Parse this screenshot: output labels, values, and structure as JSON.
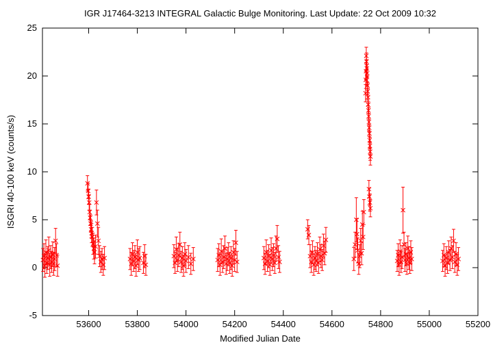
{
  "chart_data": {
    "type": "scatter",
    "title": "IGR J17464-3213   INTEGRAL Galactic Bulge Monitoring.  Last Update: 22 Oct 2009 10:32",
    "xlabel": "Modified Julian Date",
    "ylabel": "ISGRI 40-100 keV (counts/s)",
    "xlim": [
      53410,
      55200
    ],
    "ylim": [
      -5,
      25
    ],
    "xticks": [
      53600,
      53800,
      54000,
      54200,
      54400,
      54600,
      54800,
      55000,
      55200
    ],
    "yticks": [
      -5,
      0,
      5,
      10,
      15,
      20,
      25
    ],
    "grid": false,
    "legend": "none",
    "marker": "x with error bars",
    "color": "#ff0000",
    "series": [
      {
        "points": [
          [
            53412,
            0.8,
            1.2
          ],
          [
            53416,
            1.2,
            1.3
          ],
          [
            53420,
            0.2,
            1.2
          ],
          [
            53424,
            1.6,
            1.3
          ],
          [
            53428,
            0.5,
            1.1
          ],
          [
            53432,
            1.0,
            1.2
          ],
          [
            53436,
            1.8,
            1.4
          ],
          [
            53440,
            0.3,
            1.2
          ],
          [
            53444,
            1.1,
            1.2
          ],
          [
            53448,
            0.6,
            1.1
          ],
          [
            53452,
            1.4,
            1.3
          ],
          [
            53456,
            0.4,
            1.2
          ],
          [
            53460,
            0.9,
            1.2
          ],
          [
            53464,
            2.8,
            1.3
          ],
          [
            53468,
            1.3,
            1.2
          ],
          [
            53472,
            0.2,
            1.1
          ],
          [
            53595,
            8.8,
            0.8
          ],
          [
            53598,
            8.0,
            0.8
          ],
          [
            53600,
            7.4,
            0.8
          ],
          [
            53602,
            6.8,
            0.8
          ],
          [
            53604,
            5.8,
            0.8
          ],
          [
            53606,
            5.2,
            0.8
          ],
          [
            53608,
            4.6,
            0.9
          ],
          [
            53610,
            4.0,
            0.9
          ],
          [
            53612,
            3.6,
            1.0
          ],
          [
            53615,
            3.2,
            1.0
          ],
          [
            53618,
            2.5,
            1.1
          ],
          [
            53621,
            2.0,
            1.1
          ],
          [
            53624,
            1.6,
            1.2
          ],
          [
            53628,
            2.2,
            1.2
          ],
          [
            53632,
            6.8,
            1.3
          ],
          [
            53636,
            4.6,
            1.4
          ],
          [
            53640,
            2.8,
            1.4
          ],
          [
            53645,
            1.2,
            1.1
          ],
          [
            53650,
            0.6,
            1.1
          ],
          [
            53655,
            0.9,
            1.1
          ],
          [
            53660,
            0.3,
            1.1
          ],
          [
            53665,
            1.0,
            1.2
          ],
          [
            53770,
            0.9,
            1.1
          ],
          [
            53775,
            0.4,
            1.2
          ],
          [
            53780,
            1.4,
            1.2
          ],
          [
            53785,
            0.7,
            1.1
          ],
          [
            53790,
            1.1,
            1.2
          ],
          [
            53795,
            0.2,
            1.1
          ],
          [
            53800,
            1.6,
            1.3
          ],
          [
            53805,
            0.8,
            1.2
          ],
          [
            53810,
            1.0,
            1.2
          ],
          [
            53825,
            0.5,
            1.1
          ],
          [
            53830,
            1.2,
            1.2
          ],
          [
            53835,
            0.3,
            1.1
          ],
          [
            53950,
            1.2,
            1.2
          ],
          [
            53955,
            0.5,
            1.1
          ],
          [
            53960,
            1.9,
            1.3
          ],
          [
            53965,
            0.8,
            1.2
          ],
          [
            53970,
            1.3,
            1.2
          ],
          [
            53975,
            2.4,
            1.3
          ],
          [
            53980,
            0.6,
            1.1
          ],
          [
            53985,
            1.0,
            1.2
          ],
          [
            53990,
            0.2,
            1.1
          ],
          [
            53995,
            1.4,
            1.2
          ],
          [
            54000,
            0.7,
            1.2
          ],
          [
            54010,
            1.1,
            1.2
          ],
          [
            54020,
            0.4,
            1.1
          ],
          [
            54030,
            0.9,
            1.2
          ],
          [
            54130,
            0.8,
            1.2
          ],
          [
            54135,
            1.3,
            1.2
          ],
          [
            54140,
            0.3,
            1.1
          ],
          [
            54145,
            1.7,
            1.3
          ],
          [
            54150,
            0.6,
            1.1
          ],
          [
            54155,
            1.1,
            1.2
          ],
          [
            54160,
            2.0,
            1.3
          ],
          [
            54165,
            0.4,
            1.1
          ],
          [
            54170,
            0.9,
            1.2
          ],
          [
            54175,
            1.4,
            1.2
          ],
          [
            54180,
            0.5,
            1.1
          ],
          [
            54185,
            1.0,
            1.2
          ],
          [
            54190,
            0.2,
            1.1
          ],
          [
            54195,
            1.6,
            1.2
          ],
          [
            54200,
            0.8,
            1.2
          ],
          [
            54205,
            2.6,
            1.3
          ],
          [
            54210,
            0.6,
            1.1
          ],
          [
            54320,
            1.0,
            1.2
          ],
          [
            54325,
            0.4,
            1.1
          ],
          [
            54330,
            1.6,
            1.3
          ],
          [
            54335,
            0.7,
            1.1
          ],
          [
            54340,
            1.2,
            1.2
          ],
          [
            54345,
            0.3,
            1.1
          ],
          [
            54350,
            1.8,
            1.3
          ],
          [
            54355,
            0.9,
            1.2
          ],
          [
            54360,
            1.3,
            1.2
          ],
          [
            54365,
            0.5,
            1.1
          ],
          [
            54370,
            2.0,
            1.3
          ],
          [
            54375,
            3.0,
            1.4
          ],
          [
            54380,
            1.1,
            1.2
          ],
          [
            54385,
            0.6,
            1.1
          ],
          [
            54500,
            4.0,
            1.0
          ],
          [
            54505,
            3.4,
            1.0
          ],
          [
            54510,
            1.2,
            1.2
          ],
          [
            54515,
            0.6,
            1.1
          ],
          [
            54520,
            1.6,
            1.2
          ],
          [
            54525,
            0.3,
            1.1
          ],
          [
            54530,
            1.0,
            1.2
          ],
          [
            54535,
            0.7,
            1.1
          ],
          [
            54540,
            1.4,
            1.2
          ],
          [
            54545,
            0.5,
            1.1
          ],
          [
            54550,
            1.9,
            1.3
          ],
          [
            54555,
            1.2,
            1.2
          ],
          [
            54560,
            0.8,
            1.1
          ],
          [
            54565,
            2.3,
            1.2
          ],
          [
            54570,
            1.5,
            1.2
          ],
          [
            54575,
            2.9,
            1.3
          ],
          [
            54690,
            0.9,
            1.2
          ],
          [
            54695,
            2.4,
            1.3
          ],
          [
            54700,
            5.0,
            2.3
          ],
          [
            54703,
            3.5,
            1.6
          ],
          [
            54706,
            1.8,
            1.3
          ],
          [
            54710,
            0.4,
            1.1
          ],
          [
            54714,
            1.2,
            1.2
          ],
          [
            54718,
            2.8,
            1.3
          ],
          [
            54722,
            1.5,
            1.2
          ],
          [
            54725,
            4.5,
            1.4
          ],
          [
            54728,
            3.2,
            1.3
          ],
          [
            54731,
            5.8,
            1.3
          ],
          [
            54738,
            18.2,
            0.9
          ],
          [
            54739,
            19.6,
            0.9
          ],
          [
            54740,
            20.5,
            0.9
          ],
          [
            54741,
            22.1,
            0.9
          ],
          [
            54742,
            21.5,
            0.9
          ],
          [
            54743,
            20.8,
            0.9
          ],
          [
            54744,
            19.9,
            0.9
          ],
          [
            54745,
            20.3,
            0.9
          ],
          [
            54746,
            19.0,
            0.9
          ],
          [
            54747,
            18.4,
            0.9
          ],
          [
            54748,
            17.8,
            0.9
          ],
          [
            54749,
            17.0,
            0.9
          ],
          [
            54750,
            16.4,
            0.9
          ],
          [
            54751,
            15.8,
            0.9
          ],
          [
            54752,
            15.2,
            0.9
          ],
          [
            54753,
            14.6,
            0.9
          ],
          [
            54754,
            14.0,
            0.9
          ],
          [
            54755,
            13.3,
            0.9
          ],
          [
            54756,
            12.7,
            0.9
          ],
          [
            54757,
            12.1,
            0.9
          ],
          [
            54758,
            11.6,
            0.9
          ],
          [
            54752,
            8.2,
            0.9
          ],
          [
            54754,
            7.4,
            0.9
          ],
          [
            54756,
            6.8,
            0.9
          ],
          [
            54758,
            6.2,
            0.9
          ],
          [
            54868,
            0.7,
            1.1
          ],
          [
            54872,
            1.3,
            1.2
          ],
          [
            54876,
            0.3,
            1.1
          ],
          [
            54880,
            1.7,
            1.2
          ],
          [
            54884,
            0.6,
            1.1
          ],
          [
            54888,
            1.1,
            1.2
          ],
          [
            54892,
            6.0,
            2.4
          ],
          [
            54896,
            2.4,
            1.3
          ],
          [
            54900,
            0.8,
            1.2
          ],
          [
            54904,
            1.4,
            1.2
          ],
          [
            54908,
            0.4,
            1.1
          ],
          [
            54912,
            2.0,
            1.3
          ],
          [
            54916,
            1.0,
            1.2
          ],
          [
            54920,
            0.5,
            1.1
          ],
          [
            54924,
            1.6,
            1.2
          ],
          [
            54928,
            0.9,
            1.2
          ],
          [
            55055,
            0.7,
            1.1
          ],
          [
            55060,
            1.3,
            1.2
          ],
          [
            55065,
            0.2,
            1.1
          ],
          [
            55070,
            1.0,
            1.2
          ],
          [
            55075,
            0.5,
            1.1
          ],
          [
            55080,
            1.6,
            1.2
          ],
          [
            55085,
            0.8,
            1.1
          ],
          [
            55090,
            2.0,
            1.2
          ],
          [
            55095,
            1.1,
            1.2
          ],
          [
            55100,
            2.8,
            1.2
          ],
          [
            55105,
            0.6,
            1.1
          ],
          [
            55110,
            1.4,
            1.2
          ],
          [
            55115,
            0.3,
            1.1
          ],
          [
            55120,
            0.9,
            1.2
          ]
        ]
      }
    ]
  }
}
